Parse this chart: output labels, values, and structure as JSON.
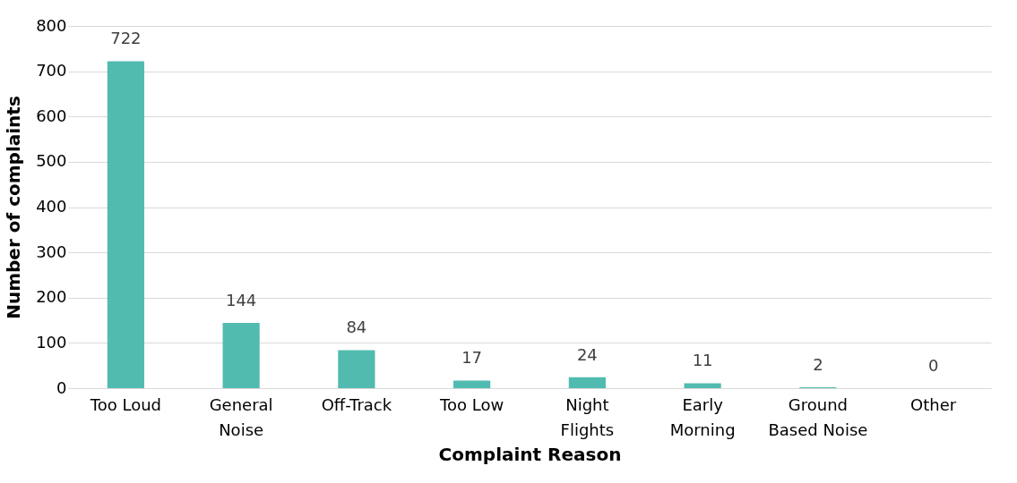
{
  "chart_data": {
    "type": "bar",
    "xlabel": "Complaint Reason",
    "ylabel": "Number of complaints",
    "categories": [
      "Too Loud",
      "General Noise",
      "Off-Track",
      "Too Low",
      "Night Flights",
      "Early Morning",
      "Ground Based Noise",
      "Other"
    ],
    "values": [
      722,
      144,
      84,
      17,
      24,
      11,
      2,
      0
    ],
    "color": "#52bbb0",
    "ylim": [
      0,
      800
    ],
    "yticks": [
      0,
      100,
      200,
      300,
      400,
      500,
      600,
      700,
      800
    ],
    "grid": "y",
    "data_labels": true
  }
}
